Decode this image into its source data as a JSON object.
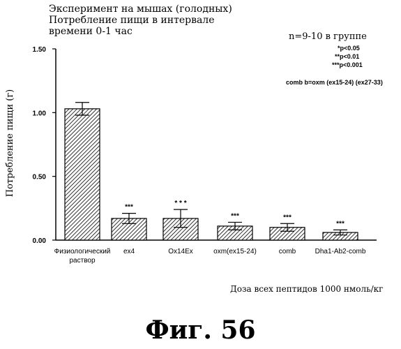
{
  "header": {
    "title_lines": [
      "Эксперимент на мышах (голодных)",
      "Потребление пищи в интервале",
      "времени 0-1 час"
    ],
    "n_label": "n=9-10 в группе"
  },
  "significance_legend": [
    "*p<0.05",
    "**p<0.01",
    "***p<0.001"
  ],
  "comb_definition": "comb b=oxm (ex15-24) (ex27-33)",
  "footer_note": "Доза всех пептидов 1000 нмоль/кг",
  "figure_label": "Фиг. 56",
  "chart_data": {
    "type": "bar",
    "title": "",
    "xlabel": "",
    "ylabel": "Потребление пищи (г)",
    "ylim": [
      0,
      1.5
    ],
    "ytick_labels": [
      "0.00",
      "0.50",
      "1.00",
      "1.50"
    ],
    "yticks": [
      0,
      0.5,
      1.0,
      1.5
    ],
    "categories": [
      [
        "Физиологический",
        "раствор"
      ],
      [
        "ex4"
      ],
      [
        "Ox14Ex"
      ],
      [
        "oxm(ex15-24)"
      ],
      [
        "comb"
      ],
      [
        "Dha1-Ab2-comb"
      ]
    ],
    "values": [
      1.03,
      0.17,
      0.17,
      0.11,
      0.1,
      0.06
    ],
    "errors": [
      0.05,
      0.04,
      0.07,
      0.03,
      0.03,
      0.02
    ],
    "stars": [
      "",
      "***",
      "* * *",
      "***",
      "***",
      "***"
    ],
    "fill_pattern": "diagonal-hatch",
    "grid": false,
    "legend": "none"
  }
}
